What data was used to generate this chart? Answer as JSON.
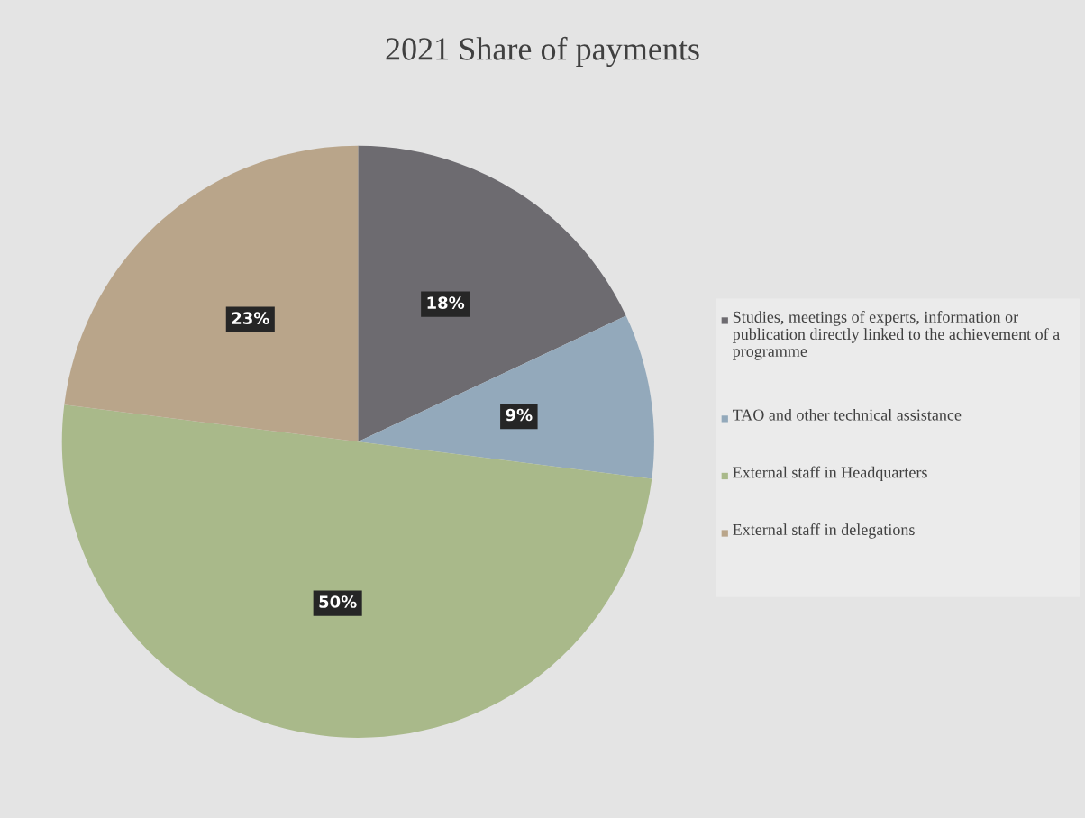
{
  "chart_data": {
    "type": "pie",
    "title": "2021 Share of payments",
    "categories": [
      "Studies, meetings of experts, information or publication directly linked to the achievement of a programme",
      "TAO and other technical assistance",
      "External staff in Headquarters",
      "External staff in delegations"
    ],
    "values": [
      18,
      9,
      50,
      23
    ],
    "colors": [
      "#6d6b70",
      "#93a9bb",
      "#a9b98a",
      "#b9a58a"
    ],
    "value_labels": [
      "18%",
      "9%",
      "50%",
      "23%"
    ],
    "legend": "right"
  }
}
